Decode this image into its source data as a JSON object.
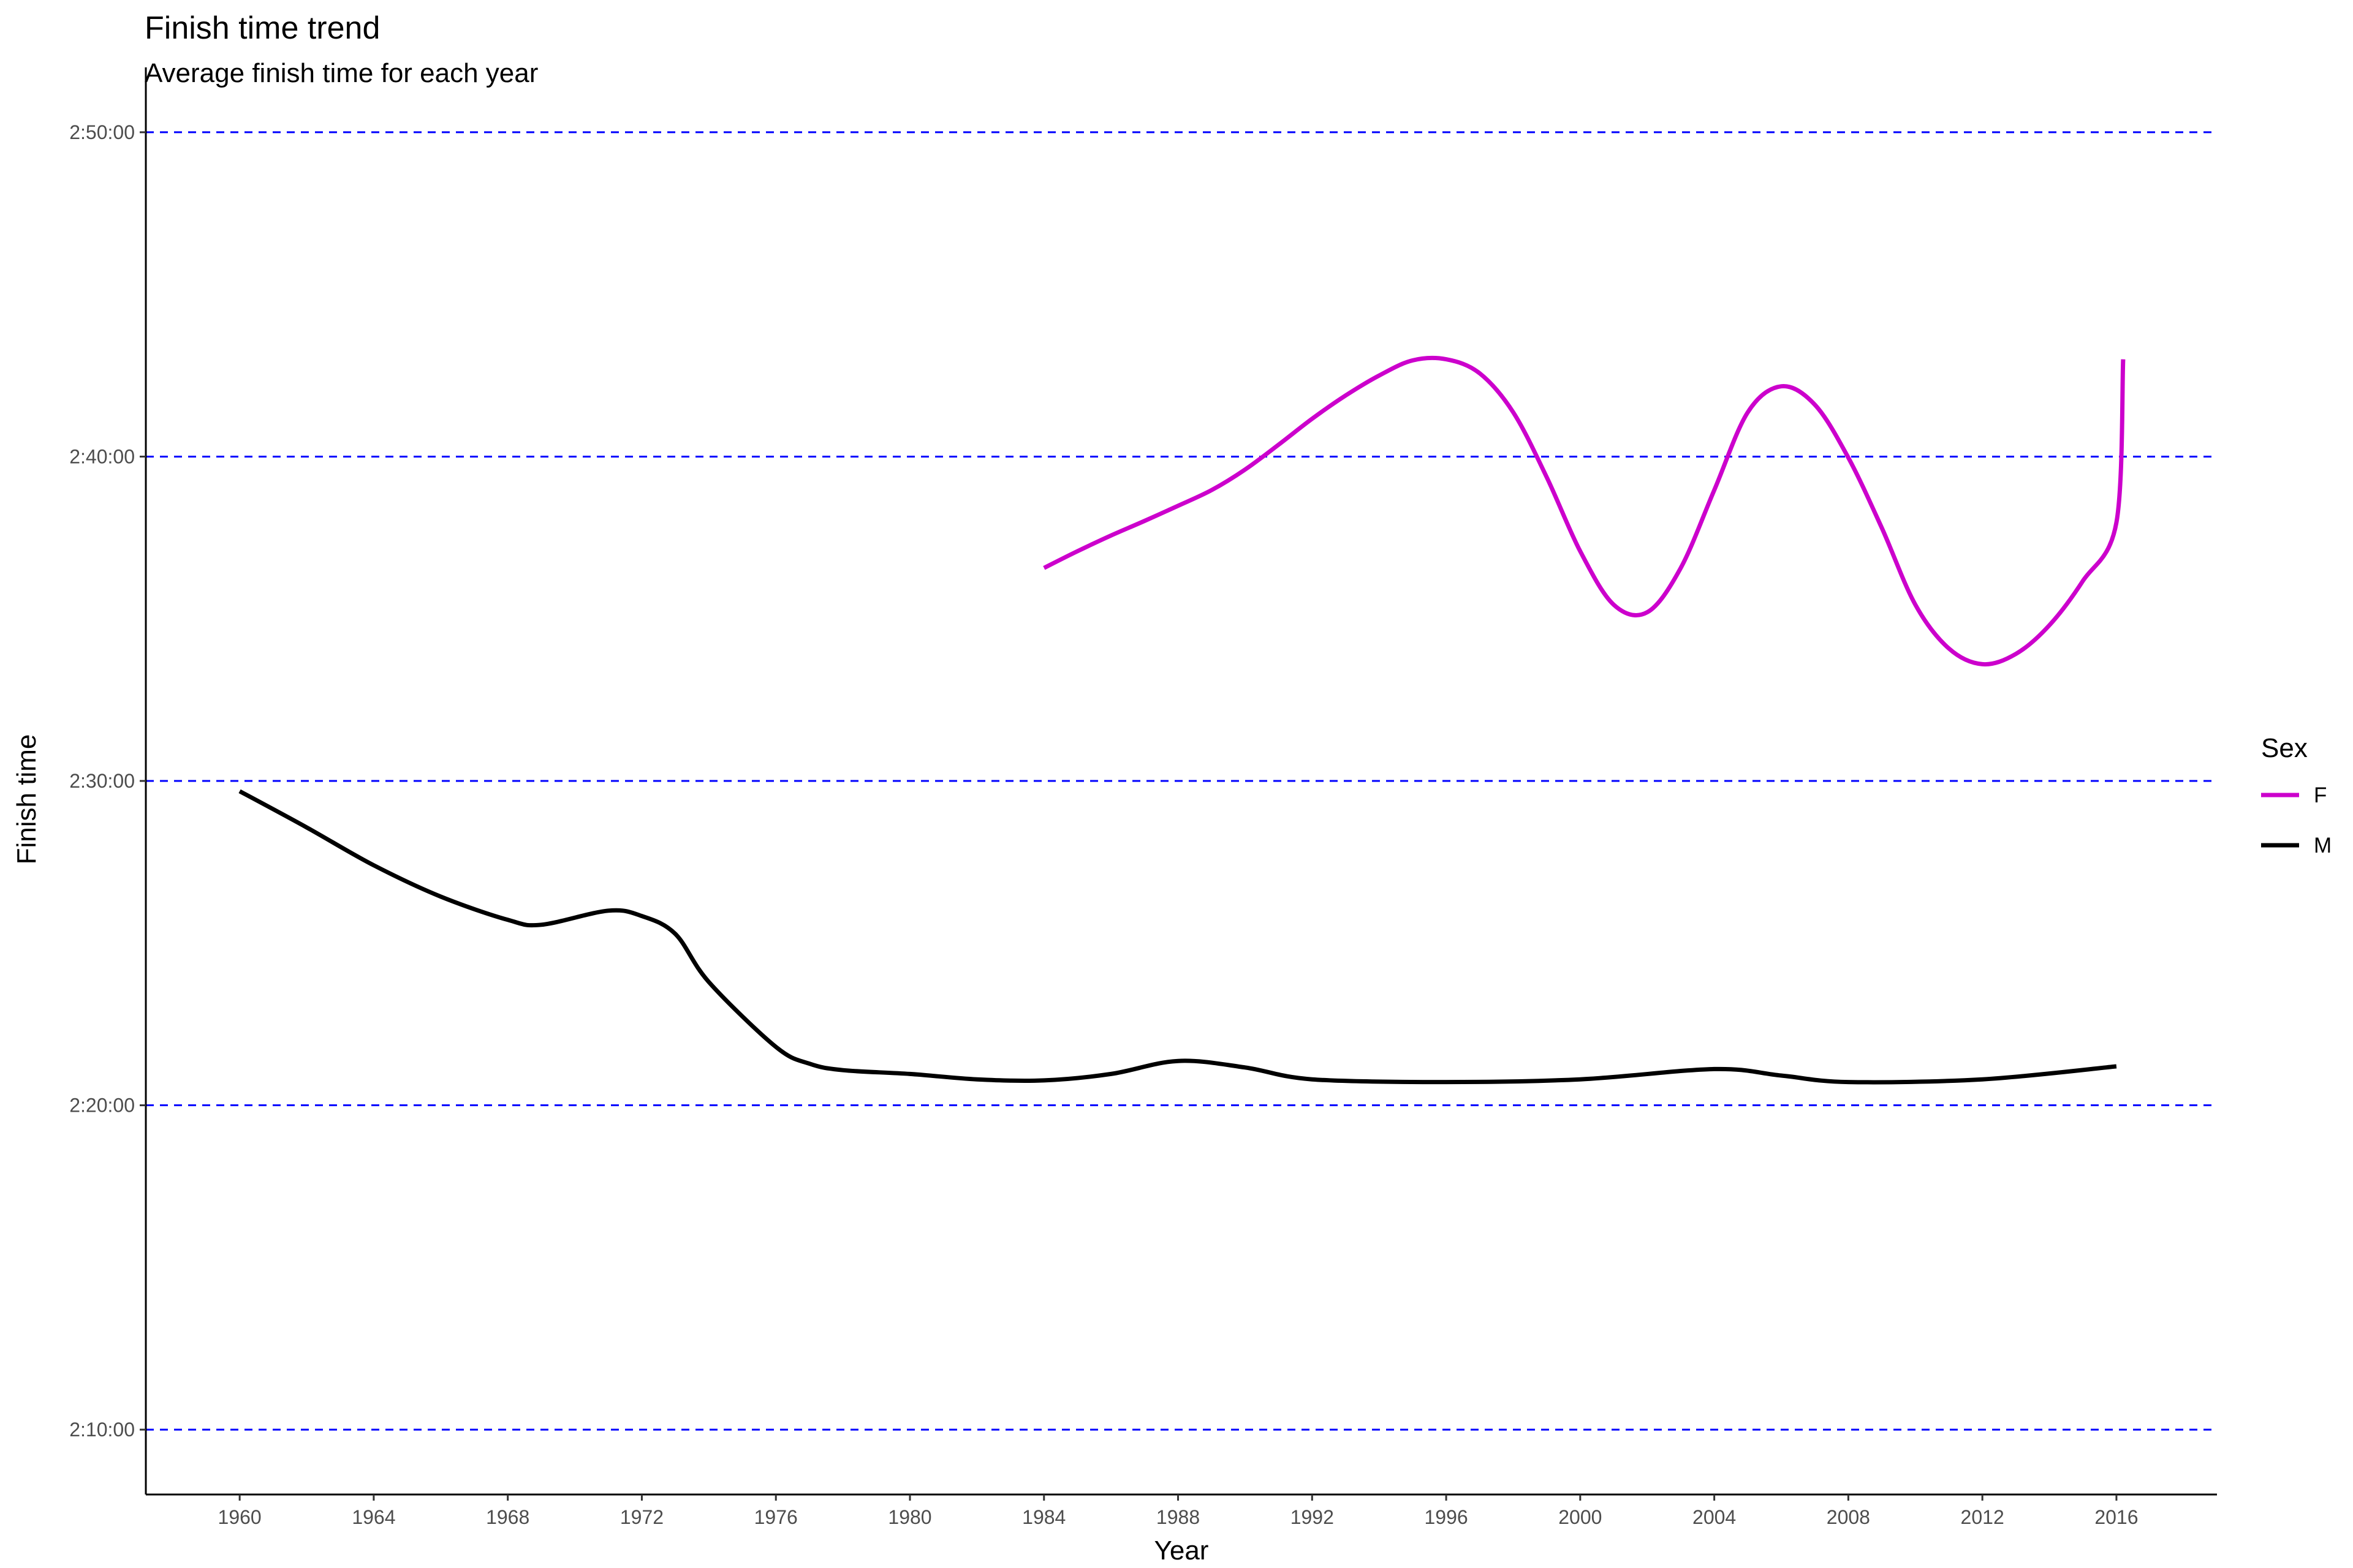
{
  "chart_data": {
    "type": "line",
    "title": "Finish time trend",
    "subtitle": "Average finish time for each year",
    "xlabel": "Year",
    "ylabel": "Finish time",
    "xlim": [
      1957.2,
      2019
    ],
    "ylim": [
      "2:08:00",
      "2:52:00"
    ],
    "x_ticks": [
      1960,
      1964,
      1968,
      1972,
      1976,
      1980,
      1984,
      1988,
      1992,
      1996,
      2000,
      2004,
      2008,
      2012,
      2016
    ],
    "y_ticks": [
      "2:10:00",
      "2:20:00",
      "2:30:00",
      "2:40:00",
      "2:50:00"
    ],
    "grid": "dashed blue horizontal lines at y ticks",
    "grid_color": "#0000ff",
    "legend": {
      "title": "Sex",
      "position": "right"
    },
    "series": [
      {
        "name": "F",
        "color": "#cc00cc",
        "points": [
          [
            1984,
            "2:36:34"
          ],
          [
            1985,
            "2:37:05"
          ],
          [
            1986,
            "2:37:34"
          ],
          [
            1987,
            "2:38:01"
          ],
          [
            1988,
            "2:38:29"
          ],
          [
            1989,
            "2:38:58"
          ],
          [
            1990,
            "2:39:36"
          ],
          [
            1991,
            "2:40:22"
          ],
          [
            1992,
            "2:41:10"
          ],
          [
            1993,
            "2:41:53"
          ],
          [
            1994,
            "2:42:30"
          ],
          [
            1995,
            "2:42:58"
          ],
          [
            1996,
            "2:43:00"
          ],
          [
            1997,
            "2:42:34"
          ],
          [
            1998,
            "2:41:22"
          ],
          [
            1999,
            "2:39:22"
          ],
          [
            2000,
            "2:37:05"
          ],
          [
            2001,
            "2:35:26"
          ],
          [
            2002,
            "2:35:12"
          ],
          [
            2003,
            "2:36:34"
          ],
          [
            2004,
            "2:38:58"
          ],
          [
            2005,
            "2:41:22"
          ],
          [
            2006,
            "2:42:10"
          ],
          [
            2007,
            "2:41:36"
          ],
          [
            2008,
            "2:39:58"
          ],
          [
            2009,
            "2:37:48"
          ],
          [
            2010,
            "2:35:26"
          ],
          [
            2011,
            "2:34:05"
          ],
          [
            2012,
            "2:33:36"
          ],
          [
            2013,
            "2:33:55"
          ],
          [
            2014,
            "2:34:48"
          ],
          [
            2015,
            "2:36:10"
          ],
          [
            2016,
            "2:37:58"
          ],
          [
            2016.2,
            "2:43:00"
          ]
        ]
      },
      {
        "name": "M",
        "color": "#000000",
        "points": [
          [
            1960,
            "2:29:41"
          ],
          [
            1962,
            "2:28:34"
          ],
          [
            1964,
            "2:27:24"
          ],
          [
            1966,
            "2:26:26"
          ],
          [
            1968,
            "2:25:43"
          ],
          [
            1969,
            "2:25:34"
          ],
          [
            1971,
            "2:26:00"
          ],
          [
            1972,
            "2:25:50"
          ],
          [
            1973,
            "2:25:17"
          ],
          [
            1974,
            "2:23:48"
          ],
          [
            1976,
            "2:21:48"
          ],
          [
            1977,
            "2:21:17"
          ],
          [
            1978,
            "2:21:05"
          ],
          [
            1980,
            "2:20:58"
          ],
          [
            1982,
            "2:20:48"
          ],
          [
            1984,
            "2:20:46"
          ],
          [
            1986,
            "2:20:58"
          ],
          [
            1988,
            "2:21:22"
          ],
          [
            1990,
            "2:21:10"
          ],
          [
            1992,
            "2:20:48"
          ],
          [
            1996,
            "2:20:43"
          ],
          [
            2000,
            "2:20:48"
          ],
          [
            2004,
            "2:21:07"
          ],
          [
            2006,
            "2:20:55"
          ],
          [
            2008,
            "2:20:43"
          ],
          [
            2012,
            "2:20:48"
          ],
          [
            2016,
            "2:21:12"
          ]
        ]
      }
    ]
  }
}
